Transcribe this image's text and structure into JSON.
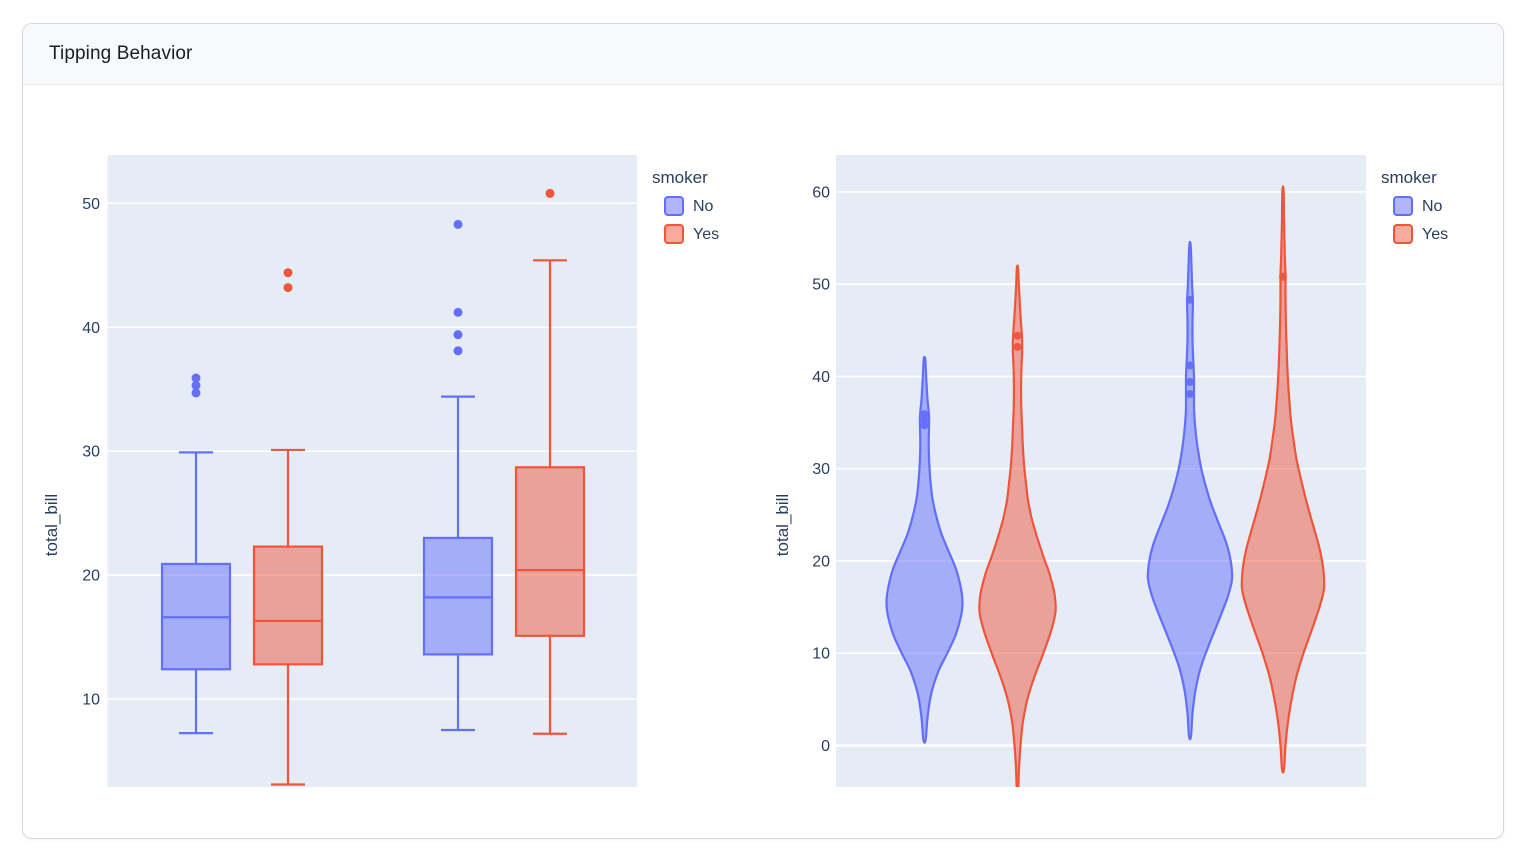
{
  "card": {
    "title": "Tipping Behavior"
  },
  "colors": {
    "series_no": "#636EFA",
    "series_yes": "#EF553B",
    "plot_background": "#E5ECF6",
    "gridline": "#FFFFFF",
    "axis_text": "#2A3F5F",
    "header_background": "#f8f9fa",
    "card_border": "#d7d8dc"
  },
  "chart_data": [
    {
      "type": "box",
      "title": "",
      "xlabel": "",
      "ylabel": "total_bill",
      "x_categories": [
        "",
        ""
      ],
      "y_ticks": [
        10,
        20,
        30,
        40,
        50
      ],
      "ylim": [
        2.9,
        53.9
      ],
      "grid": true,
      "legend": {
        "title": "smoker",
        "position": "top-right",
        "entries": [
          "No",
          "Yes"
        ]
      },
      "series": [
        {
          "name": "No",
          "color": "#636EFA",
          "boxes": [
            {
              "low": 7.25,
              "q1": 12.4,
              "median": 16.6,
              "q3": 20.9,
              "high": 29.9,
              "outliers": [
                34.7,
                35.3,
                35.9
              ]
            },
            {
              "low": 7.5,
              "q1": 13.6,
              "median": 18.2,
              "q3": 23.0,
              "high": 34.4,
              "outliers": [
                38.1,
                39.4,
                41.2,
                48.3
              ]
            }
          ]
        },
        {
          "name": "Yes",
          "color": "#EF553B",
          "boxes": [
            {
              "low": 3.1,
              "q1": 12.8,
              "median": 16.3,
              "q3": 22.3,
              "high": 30.1,
              "outliers": [
                43.2,
                44.4
              ]
            },
            {
              "low": 7.2,
              "q1": 15.1,
              "median": 20.4,
              "q3": 28.7,
              "high": 45.4,
              "outliers": [
                50.8
              ]
            }
          ]
        }
      ]
    },
    {
      "type": "violin",
      "title": "",
      "xlabel": "",
      "ylabel": "total_bill",
      "x_categories": [
        "",
        ""
      ],
      "y_ticks": [
        0,
        10,
        20,
        30,
        40,
        50,
        60
      ],
      "ylim": [
        -4.5,
        64.0
      ],
      "grid": true,
      "legend": {
        "title": "smoker",
        "position": "top-right",
        "entries": [
          "No",
          "Yes"
        ]
      },
      "series": [
        {
          "name": "No",
          "color": "#636EFA",
          "violins": [
            {
              "min": 0.6,
              "max": 42.0,
              "peak": 15.5,
              "points": [
                34.7,
                35.3,
                35.9
              ],
              "profile": [
                [
                  0.6,
                  0.03
                ],
                [
                  3,
                  0.08
                ],
                [
                  5.5,
                  0.17
                ],
                [
                  8,
                  0.36
                ],
                [
                  10,
                  0.6
                ],
                [
                  12,
                  0.82
                ],
                [
                  14,
                  0.96
                ],
                [
                  15.5,
                  1.0
                ],
                [
                  17,
                  0.96
                ],
                [
                  19,
                  0.84
                ],
                [
                  21,
                  0.64
                ],
                [
                  23,
                  0.44
                ],
                [
                  25,
                  0.3
                ],
                [
                  27,
                  0.2
                ],
                [
                  29,
                  0.15
                ],
                [
                  31,
                  0.12
                ],
                [
                  33,
                  0.11
                ],
                [
                  35.5,
                  0.12
                ],
                [
                  37.5,
                  0.08
                ],
                [
                  39.5,
                  0.05
                ],
                [
                  41.2,
                  0.03
                ],
                [
                  42,
                  0.015
                ]
              ]
            },
            {
              "min": 1.0,
              "max": 54.3,
              "peak": 18.0,
              "points": [
                38.1,
                39.4,
                41.2,
                48.3
              ],
              "profile": [
                [
                  1,
                  0.025
                ],
                [
                  3.5,
                  0.06
                ],
                [
                  6,
                  0.13
                ],
                [
                  8.5,
                  0.26
                ],
                [
                  11,
                  0.46
                ],
                [
                  13.5,
                  0.68
                ],
                [
                  16,
                  0.89
                ],
                [
                  18,
                  1.0
                ],
                [
                  20,
                  0.97
                ],
                [
                  22,
                  0.86
                ],
                [
                  24,
                  0.69
                ],
                [
                  26,
                  0.52
                ],
                [
                  28,
                  0.38
                ],
                [
                  30,
                  0.27
                ],
                [
                  32,
                  0.19
                ],
                [
                  34,
                  0.135
                ],
                [
                  36,
                  0.1
                ],
                [
                  38,
                  0.095
                ],
                [
                  40,
                  0.095
                ],
                [
                  42,
                  0.075
                ],
                [
                  44,
                  0.06
                ],
                [
                  46,
                  0.06
                ],
                [
                  48,
                  0.07
                ],
                [
                  50,
                  0.05
                ],
                [
                  52,
                  0.035
                ],
                [
                  54.3,
                  0.015
                ]
              ]
            }
          ]
        },
        {
          "name": "Yes",
          "color": "#EF553B",
          "violins": [
            {
              "min": -4.6,
              "max": 51.8,
              "peak": 14.5,
              "points": [
                43.2,
                44.4
              ],
              "profile": [
                [
                  -4.6,
                  0.02
                ],
                [
                  -2.5,
                  0.04
                ],
                [
                  0,
                  0.08
                ],
                [
                  2.5,
                  0.14
                ],
                [
                  5,
                  0.26
                ],
                [
                  7.5,
                  0.45
                ],
                [
                  10,
                  0.68
                ],
                [
                  12.5,
                  0.89
                ],
                [
                  14.5,
                  1.0
                ],
                [
                  16.5,
                  0.97
                ],
                [
                  18.5,
                  0.85
                ],
                [
                  20.5,
                  0.68
                ],
                [
                  22.5,
                  0.52
                ],
                [
                  24.5,
                  0.38
                ],
                [
                  26.5,
                  0.28
                ],
                [
                  28.5,
                  0.22
                ],
                [
                  30.5,
                  0.17
                ],
                [
                  32.5,
                  0.14
                ],
                [
                  34.5,
                  0.12
                ],
                [
                  36.5,
                  0.1
                ],
                [
                  38.5,
                  0.095
                ],
                [
                  40.5,
                  0.1
                ],
                [
                  42.5,
                  0.12
                ],
                [
                  44,
                  0.12
                ],
                [
                  46,
                  0.09
                ],
                [
                  48,
                  0.06
                ],
                [
                  50,
                  0.035
                ],
                [
                  51.8,
                  0.015
                ]
              ]
            },
            {
              "min": -2.6,
              "max": 60.2,
              "peak": 17.0,
              "points": [
                50.8
              ],
              "profile": [
                [
                  -2.6,
                  0.025
                ],
                [
                  0,
                  0.06
                ],
                [
                  2.5,
                  0.12
                ],
                [
                  5,
                  0.21
                ],
                [
                  7.5,
                  0.33
                ],
                [
                  10,
                  0.5
                ],
                [
                  12.5,
                  0.7
                ],
                [
                  15,
                  0.89
                ],
                [
                  17,
                  1.0
                ],
                [
                  19,
                  0.985
                ],
                [
                  21,
                  0.91
                ],
                [
                  23,
                  0.79
                ],
                [
                  25,
                  0.66
                ],
                [
                  27,
                  0.54
                ],
                [
                  29,
                  0.43
                ],
                [
                  31,
                  0.33
                ],
                [
                  33,
                  0.26
                ],
                [
                  35,
                  0.2
                ],
                [
                  37,
                  0.16
                ],
                [
                  39,
                  0.13
                ],
                [
                  41,
                  0.105
                ],
                [
                  43,
                  0.09
                ],
                [
                  45,
                  0.075
                ],
                [
                  47,
                  0.065
                ],
                [
                  49,
                  0.06
                ],
                [
                  51,
                  0.06
                ],
                [
                  53,
                  0.045
                ],
                [
                  55,
                  0.035
                ],
                [
                  57,
                  0.025
                ],
                [
                  60.2,
                  0.015
                ]
              ]
            }
          ]
        }
      ]
    }
  ]
}
